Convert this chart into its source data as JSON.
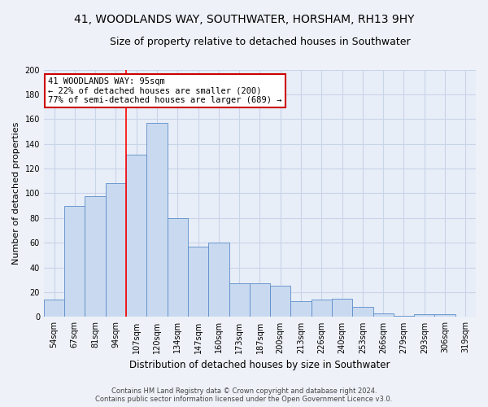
{
  "title": "41, WOODLANDS WAY, SOUTHWATER, HORSHAM, RH13 9HY",
  "subtitle": "Size of property relative to detached houses in Southwater",
  "xlabel": "Distribution of detached houses by size in Southwater",
  "ylabel": "Number of detached properties",
  "categories": [
    "54sqm",
    "67sqm",
    "81sqm",
    "94sqm",
    "107sqm",
    "120sqm",
    "134sqm",
    "147sqm",
    "160sqm",
    "173sqm",
    "187sqm",
    "200sqm",
    "213sqm",
    "226sqm",
    "240sqm",
    "253sqm",
    "266sqm",
    "279sqm",
    "293sqm",
    "306sqm",
    "319sqm"
  ],
  "values": [
    14,
    90,
    98,
    108,
    131,
    157,
    80,
    57,
    60,
    27,
    27,
    25,
    13,
    14,
    15,
    8,
    3,
    1,
    2,
    2,
    0
  ],
  "bar_color": "#c9daf0",
  "bar_edge_color": "#5b8cc8",
  "red_line_x": 3.5,
  "annotation_line1": "41 WOODLANDS WAY: 95sqm",
  "annotation_line2": "← 22% of detached houses are smaller (200)",
  "annotation_line3": "77% of semi-detached houses are larger (689) →",
  "annotation_box_color": "#ffffff",
  "annotation_box_edge_color": "#cc0000",
  "ylim": [
    0,
    200
  ],
  "yticks": [
    0,
    20,
    40,
    60,
    80,
    100,
    120,
    140,
    160,
    180,
    200
  ],
  "grid_color": "#c8d4e8",
  "background_color": "#e8eef8",
  "fig_background_color": "#eef2f8",
  "footnote1": "Contains HM Land Registry data © Crown copyright and database right 2024.",
  "footnote2": "Contains public sector information licensed under the Open Government Licence v3.0.",
  "title_fontsize": 10,
  "subtitle_fontsize": 9,
  "xlabel_fontsize": 8.5,
  "ylabel_fontsize": 8,
  "tick_fontsize": 7,
  "annotation_fontsize": 7.5,
  "footnote_fontsize": 6
}
